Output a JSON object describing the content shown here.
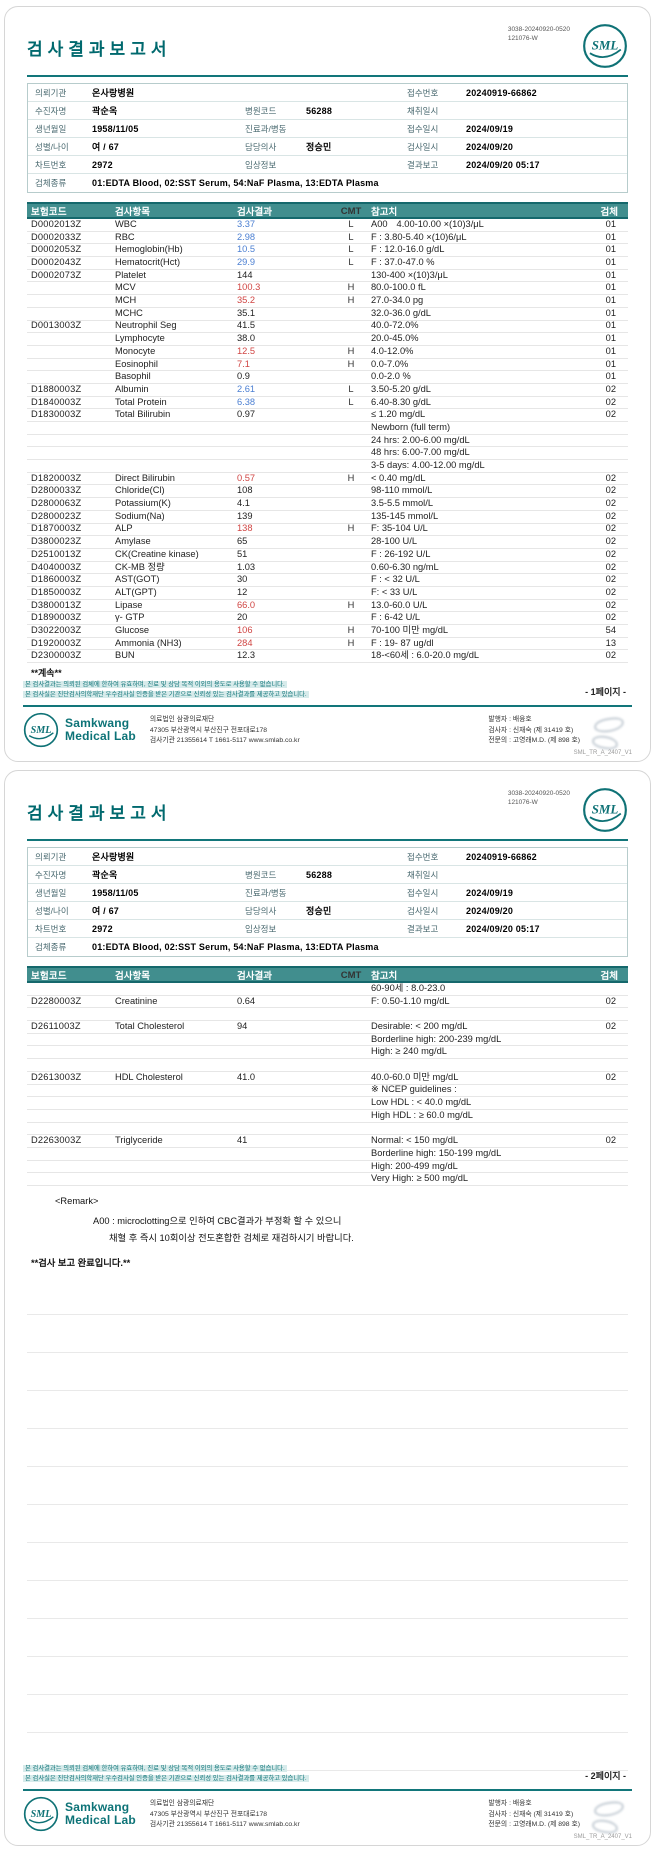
{
  "doc": {
    "title": "검사결과보고서",
    "corner_code_line1": "3038-20240920-0520",
    "corner_code_line2": "121076-W",
    "logo_text": "SML",
    "form_code": "SML_TR_A_2407_V1"
  },
  "info": {
    "labels": {
      "org": "의뢰기관",
      "patient": "수진자명",
      "birth": "생년월일",
      "sex": "성별/나이",
      "chart": "차트번호",
      "specimen": "검체종류",
      "hosp_code": "병원코드",
      "dept": "진료과/병동",
      "doctor": "담당의사",
      "clinical": "임상정보",
      "recv_no": "접수번호",
      "collect": "채취일시",
      "recv": "접수일시",
      "test": "검사일시",
      "report": "결과보고"
    },
    "values": {
      "org": "온사랑병원",
      "patient": "곽순옥",
      "birth": "1958/11/05",
      "sex": "여 / 67",
      "chart": "2972",
      "specimen": "01:EDTA Blood, 02:SST Serum, 54:NaF Plasma, 13:EDTA Plasma",
      "hosp_code": "56288",
      "dept": "",
      "doctor": "정승민",
      "clinical": "",
      "recv_no": "20240919-66862",
      "collect": "",
      "recv": "2024/09/19",
      "test": "2024/09/20",
      "report": "2024/09/20 05:17"
    }
  },
  "results_header": {
    "code": "보험코드",
    "item": "검사항목",
    "result": "검사결과",
    "cmt": "CMT",
    "ref": "참고치",
    "spec": "검체"
  },
  "continued_label": "**계속**",
  "remark": {
    "title": "<Remark>",
    "line1": "A00 : microclotting으로 인하여 CBC결과가 부정확 할 수 있으니",
    "line2": "채혈 후 즉시 10회이상 전도혼합한 검체로 재검하시기 바랍니다.",
    "complete": "**검사 보고 완료입니다.**"
  },
  "footer": {
    "note1": "본 검사결과는 의뢰된 검체에 한하여 유효하며, 진료 및 상담 목적 이외의 용도로 사용할 수 없습니다.",
    "note2": "본 검사실은 진단검사의학재단 우수검사실 인증을 받은 기관으로 신뢰성 있는 검사결과를 제공하고 있습니다.",
    "company": "Samkwang",
    "company2": "Medical Lab",
    "addr1": "의료법인 삼광의료재단",
    "addr2": "47305 부산광역시 부산진구 전포대로178",
    "addr3": "검사기관 21355614 T 1661-5117 www.smlab.co.kr",
    "issuer": "발행자 : 배융호",
    "tester": "검사자 : 신재숙 (제 31419 호)",
    "specialist": "전문의 : 고영래M.D. (제 898 호)"
  },
  "colors": {
    "accent": "#0d7377",
    "header_bar": "#418e8e",
    "low": "#4b7fd2",
    "high": "#d04543"
  },
  "pages": [
    {
      "page_label": "- 1페이지 -",
      "continued": true,
      "remark": false,
      "blank_lines": 0,
      "rows": [
        {
          "code": "D0002013Z",
          "name": "WBC",
          "result": "3.37",
          "state": "low",
          "cmt": "L",
          "cmt2": "A00",
          "ref": "4.00-10.00 ×(10)3/μL",
          "spec": "01"
        },
        {
          "code": "D0002033Z",
          "name": "RBC",
          "result": "2.98",
          "state": "low",
          "cmt": "L",
          "ref": "F : 3.80-5.40 ×(10)6/μL",
          "spec": "01"
        },
        {
          "code": "D0002053Z",
          "name": "Hemoglobin(Hb)",
          "result": "10.5",
          "state": "low",
          "cmt": "L",
          "ref": "F : 12.0-16.0 g/dL",
          "spec": "01"
        },
        {
          "code": "D0002043Z",
          "name": "Hematocrit(Hct)",
          "result": "29.9",
          "state": "low",
          "cmt": "L",
          "ref": "F : 37.0-47.0 %",
          "spec": "01"
        },
        {
          "code": "D0002073Z",
          "name": "Platelet",
          "result": "144",
          "state": "normal",
          "ref": "130-400 ×(10)3/μL",
          "spec": "01"
        },
        {
          "code": "",
          "name": "MCV",
          "result": "100.3",
          "state": "high",
          "cmt": "H",
          "ref": "80.0-100.0 fL",
          "spec": "01"
        },
        {
          "code": "",
          "name": "MCH",
          "result": "35.2",
          "state": "high",
          "cmt": "H",
          "ref": "27.0-34.0 pg",
          "spec": "01"
        },
        {
          "code": "",
          "name": "MCHC",
          "result": "35.1",
          "state": "normal",
          "ref": "32.0-36.0 g/dL",
          "spec": "01"
        },
        {
          "code": "D0013003Z",
          "name": "Neutrophil Seg",
          "result": "41.5",
          "state": "normal",
          "ref": "40.0-72.0%",
          "spec": "01"
        },
        {
          "code": "",
          "name": "Lymphocyte",
          "result": "38.0",
          "state": "normal",
          "ref": "20.0-45.0%",
          "spec": "01"
        },
        {
          "code": "",
          "name": "Monocyte",
          "result": "12.5",
          "state": "high",
          "cmt": "H",
          "ref": "4.0-12.0%",
          "spec": "01"
        },
        {
          "code": "",
          "name": "Eosinophil",
          "result": "7.1",
          "state": "high",
          "cmt": "H",
          "ref": "0.0-7.0%",
          "spec": "01"
        },
        {
          "code": "",
          "name": "Basophil",
          "result": "0.9",
          "state": "normal",
          "ref": "0.0-2.0 %",
          "spec": "01"
        },
        {
          "code": "D1880003Z",
          "name": "Albumin",
          "result": "2.61",
          "state": "low",
          "cmt": "L",
          "ref": "3.50-5.20 g/dL",
          "spec": "02"
        },
        {
          "code": "D1840003Z",
          "name": "Total Protein",
          "result": "6.38",
          "state": "low",
          "cmt": "L",
          "ref": "6.40-8.30 g/dL",
          "spec": "02"
        },
        {
          "code": "D1830003Z",
          "name": "Total Bilirubin",
          "result": "0.97",
          "state": "normal",
          "ref": "≤ 1.20 mg/dL",
          "spec": "02"
        },
        {
          "ref": "Newborn (full term)"
        },
        {
          "ref": "24 hrs: 2.00-6.00 mg/dL"
        },
        {
          "ref": "48 hrs: 6.00-7.00 mg/dL"
        },
        {
          "ref": "3-5 days: 4.00-12.00 mg/dL"
        },
        {
          "code": "D1820003Z",
          "name": "Direct Bilirubin",
          "result": "0.57",
          "state": "high",
          "cmt": "H",
          "ref": "< 0.40 mg/dL",
          "spec": "02"
        },
        {
          "code": "D2800033Z",
          "name": "Chloride(Cl)",
          "result": "108",
          "state": "normal",
          "ref": "98-110 mmol/L",
          "spec": "02"
        },
        {
          "code": "D2800063Z",
          "name": "Potassium(K)",
          "result": "4.1",
          "state": "normal",
          "ref": "3.5-5.5 mmol/L",
          "spec": "02"
        },
        {
          "code": "D2800023Z",
          "name": "Sodium(Na)",
          "result": "139",
          "state": "normal",
          "ref": "135-145 mmol/L",
          "spec": "02"
        },
        {
          "code": "D1870003Z",
          "name": "ALP",
          "result": "138",
          "state": "high",
          "cmt": "H",
          "ref": "F: 35-104 U/L",
          "spec": "02"
        },
        {
          "code": "D3800023Z",
          "name": "Amylase",
          "result": "65",
          "state": "normal",
          "ref": "28-100 U/L",
          "spec": "02"
        },
        {
          "code": "D2510013Z",
          "name": "CK(Creatine kinase)",
          "result": "51",
          "state": "normal",
          "ref": "F : 26-192 U/L",
          "spec": "02"
        },
        {
          "code": "D4040003Z",
          "name": "CK-MB 정량",
          "result": "1.03",
          "state": "normal",
          "ref": "0.60-6.30 ng/mL",
          "spec": "02"
        },
        {
          "code": "D1860003Z",
          "name": "AST(GOT)",
          "result": "30",
          "state": "normal",
          "ref": "F : < 32 U/L",
          "spec": "02"
        },
        {
          "code": "D1850003Z",
          "name": "ALT(GPT)",
          "result": "12",
          "state": "normal",
          "ref": "F: < 33 U/L",
          "spec": "02"
        },
        {
          "code": "D3800013Z",
          "name": "Lipase",
          "result": "66.0",
          "state": "high",
          "cmt": "H",
          "ref": "13.0-60.0 U/L",
          "spec": "02"
        },
        {
          "code": "D1890003Z",
          "name": "γ- GTP",
          "result": "20",
          "state": "normal",
          "ref": "F : 6-42 U/L",
          "spec": "02"
        },
        {
          "code": "D3022003Z",
          "name": "Glucose",
          "result": "106",
          "state": "high",
          "cmt": "H",
          "ref": "70-100 미만 mg/dL",
          "spec": "54"
        },
        {
          "code": "D1920003Z",
          "name": "Ammonia (NH3)",
          "result": "284",
          "state": "high",
          "cmt": "H",
          "ref": "F : 19- 87 ug/dl",
          "spec": "13"
        },
        {
          "code": "D2300003Z",
          "name": "BUN",
          "result": "12.3",
          "state": "normal",
          "ref": "18-<60세 : 6.0-20.0 mg/dL",
          "spec": "02"
        }
      ]
    },
    {
      "page_label": "- 2페이지 -",
      "continued": false,
      "remark": true,
      "blank_lines": 13,
      "rows": [
        {
          "ref": "60-90세 : 8.0-23.0"
        },
        {
          "code": "D2280003Z",
          "name": "Creatinine",
          "result": "0.64",
          "state": "normal",
          "ref": "F: 0.50-1.10 mg/dL",
          "spec": "02"
        },
        {
          "spacer": true
        },
        {
          "code": "D2611003Z",
          "name": "Total Cholesterol",
          "result": "94",
          "state": "normal",
          "ref": "Desirable: < 200 mg/dL",
          "spec": "02"
        },
        {
          "ref": "Borderline high: 200-239 mg/dL"
        },
        {
          "ref": "High: ≥ 240 mg/dL"
        },
        {
          "spacer": true
        },
        {
          "code": "D2613003Z",
          "name": "HDL Cholesterol",
          "result": "41.0",
          "state": "normal",
          "ref": "40.0-60.0 미만 mg/dL",
          "spec": "02"
        },
        {
          "ref": "※ NCEP guidelines :"
        },
        {
          "ref": "Low HDL : < 40.0 mg/dL"
        },
        {
          "ref": "High HDL : ≥ 60.0 mg/dL"
        },
        {
          "spacer": true
        },
        {
          "code": "D2263003Z",
          "name": "Triglyceride",
          "result": "41",
          "state": "normal",
          "ref": "Normal: < 150 mg/dL",
          "spec": "02"
        },
        {
          "ref": "Borderline high: 150-199 mg/dL"
        },
        {
          "ref": "High: 200-499 mg/dL"
        },
        {
          "ref": "Very High: ≥ 500 mg/dL"
        }
      ]
    }
  ]
}
